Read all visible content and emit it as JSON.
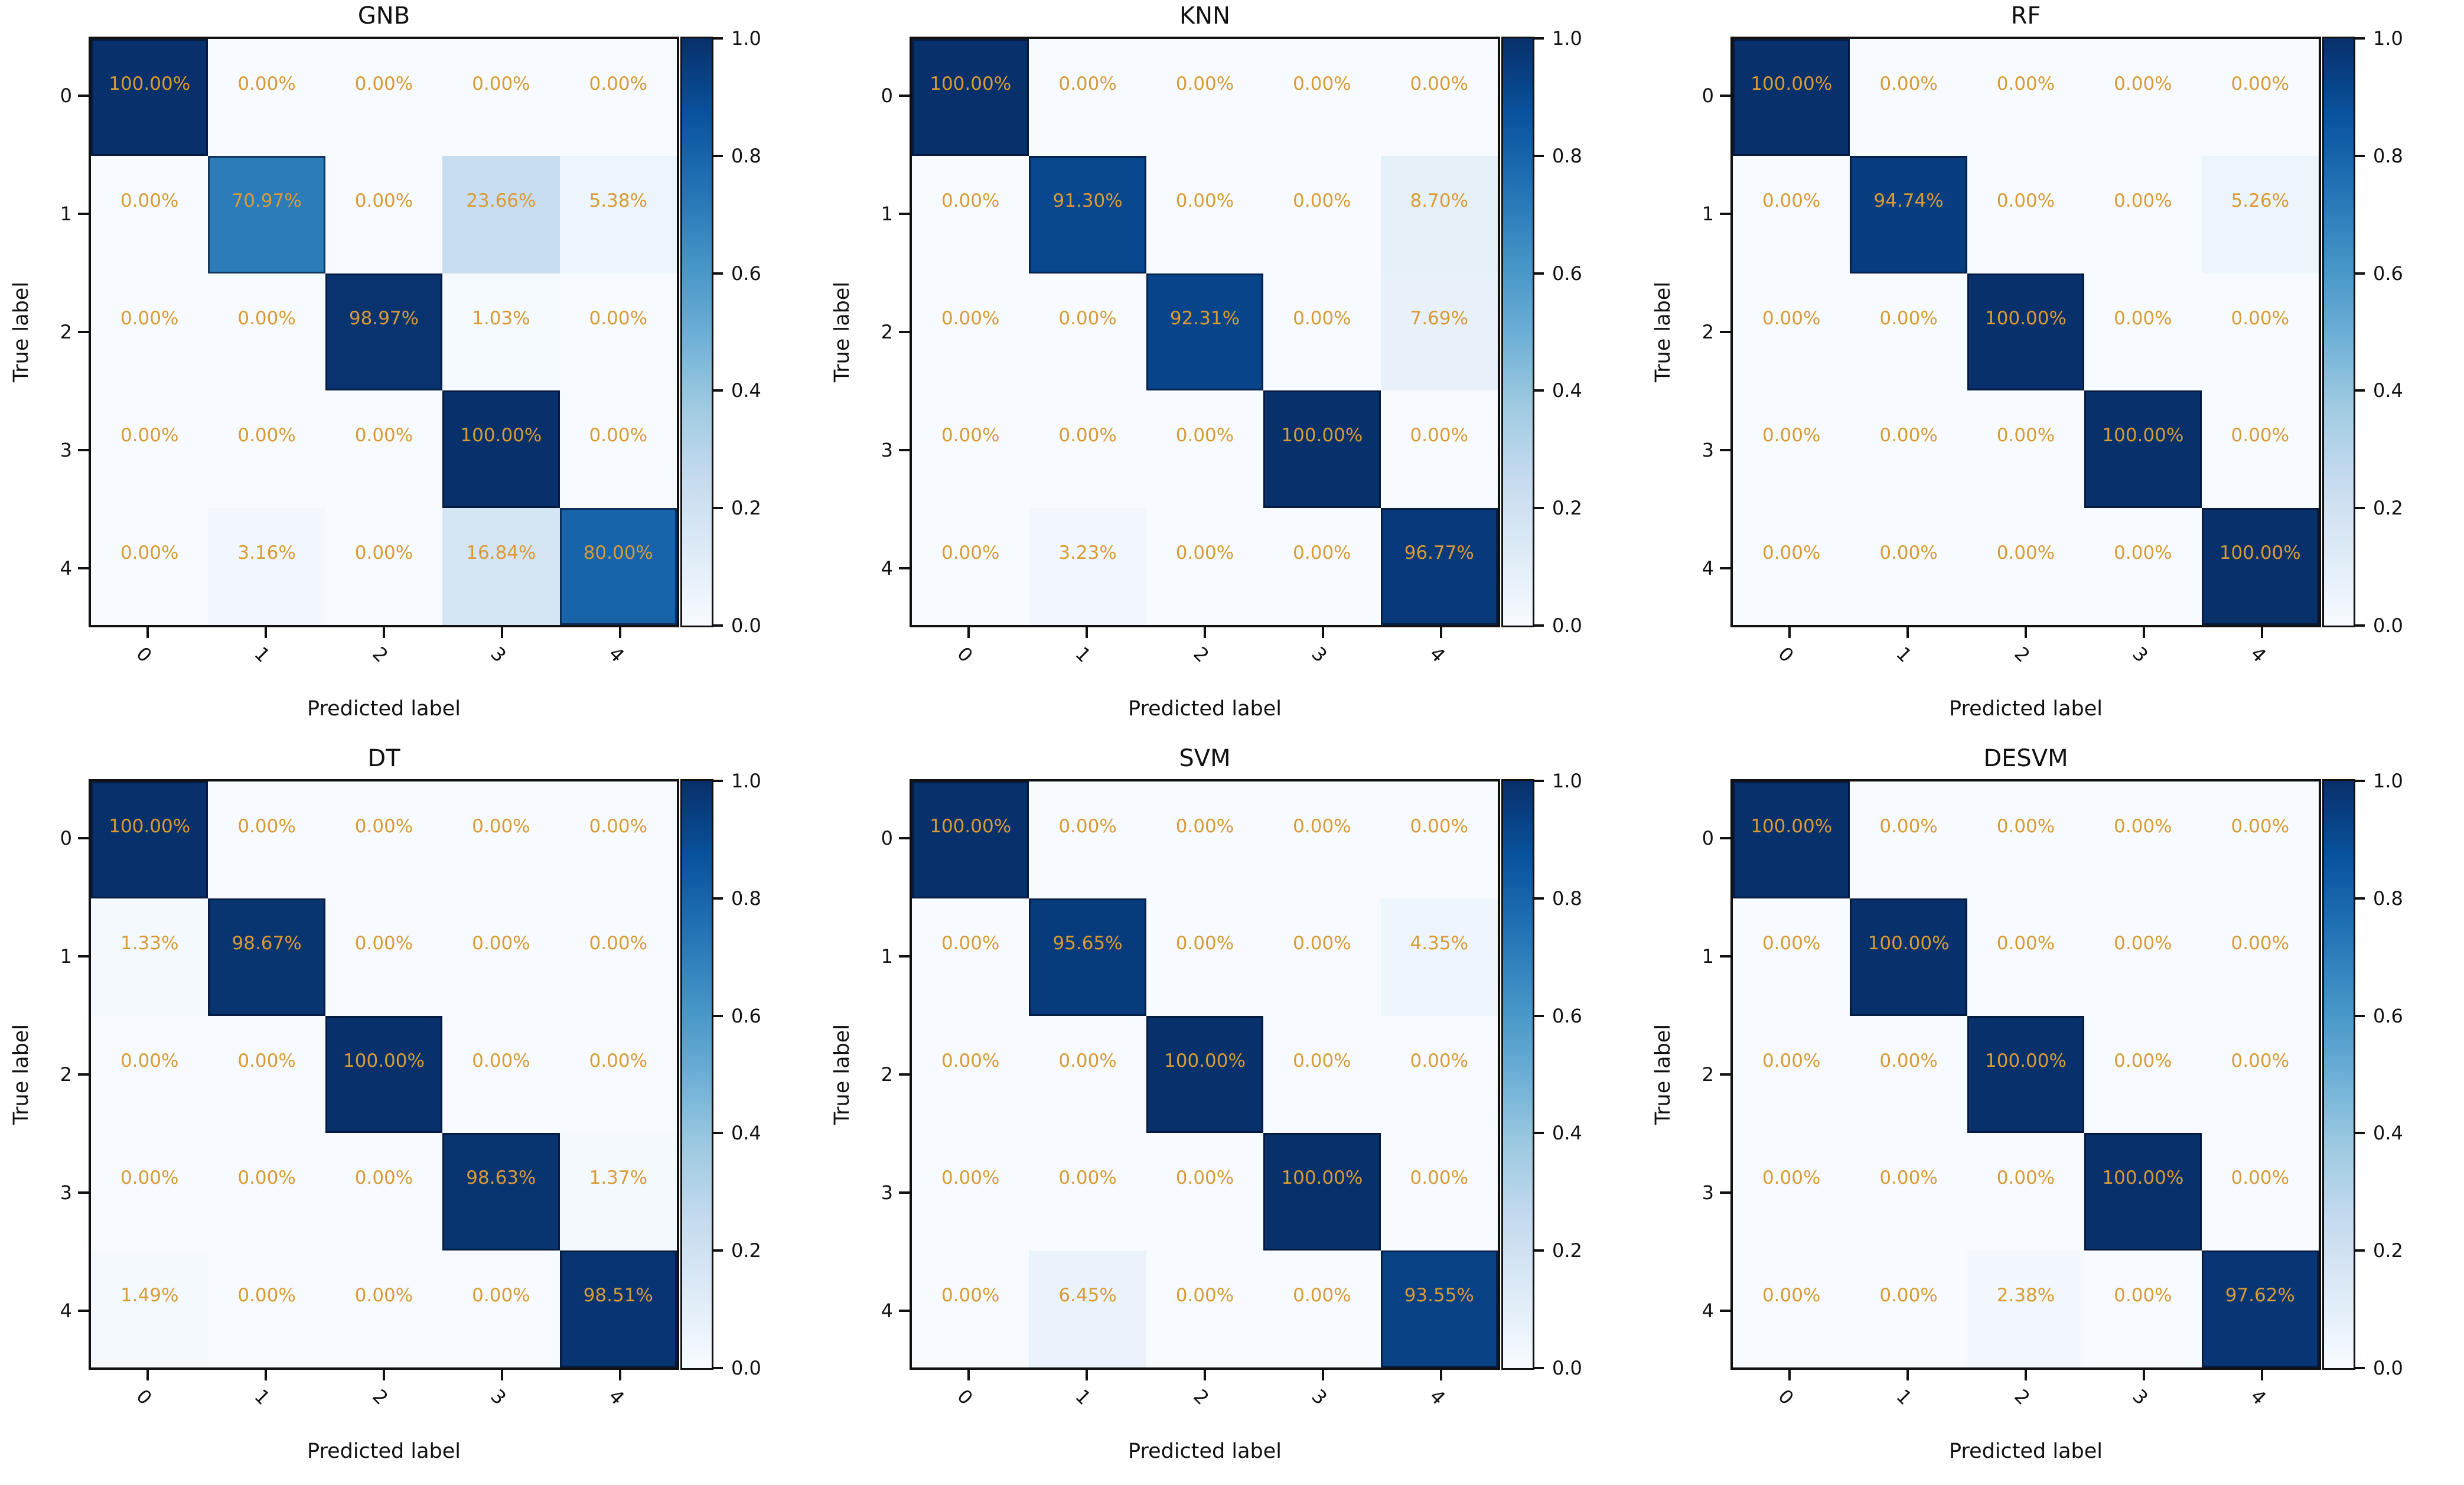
{
  "figure": {
    "background": "#ffffff",
    "annotation_color": "#d89b35",
    "axis_color": "#111111",
    "colormap": "Blues",
    "blues_colormap_anchors": [
      "#f7fbff",
      "#deebf7",
      "#c6dbef",
      "#9ecae1",
      "#6baed6",
      "#4292c6",
      "#2171b5",
      "#08519c",
      "#08306b"
    ]
  },
  "colorbar": {
    "ticks": [
      "1.0",
      "0.8",
      "0.6",
      "0.4",
      "0.2",
      "0.0"
    ],
    "tick_values": [
      1.0,
      0.8,
      0.6,
      0.4,
      0.2,
      0.0
    ],
    "min": 0.0,
    "max": 1.0
  },
  "chart_data": [
    {
      "type": "heatmap",
      "title": "GNB",
      "xlabel": "Predicted label",
      "ylabel": "True label",
      "x_categories": [
        "0",
        "1",
        "2",
        "3",
        "4"
      ],
      "y_categories": [
        "0",
        "1",
        "2",
        "3",
        "4"
      ],
      "values_percent": [
        [
          100.0,
          0.0,
          0.0,
          0.0,
          0.0
        ],
        [
          0.0,
          70.97,
          0.0,
          23.66,
          5.38
        ],
        [
          0.0,
          0.0,
          98.97,
          1.03,
          0.0
        ],
        [
          0.0,
          0.0,
          0.0,
          100.0,
          0.0
        ],
        [
          0.0,
          3.16,
          0.0,
          16.84,
          80.0
        ]
      ],
      "rows": [
        [
          "100.00%",
          "0.00%",
          "0.00%",
          "0.00%",
          "0.00%"
        ],
        [
          "0.00%",
          "70.97%",
          "0.00%",
          "23.66%",
          "5.38%"
        ],
        [
          "0.00%",
          "0.00%",
          "98.97%",
          "1.03%",
          "0.00%"
        ],
        [
          "0.00%",
          "0.00%",
          "0.00%",
          "100.00%",
          "0.00%"
        ],
        [
          "0.00%",
          "3.16%",
          "0.00%",
          "16.84%",
          "80.00%"
        ]
      ]
    },
    {
      "type": "heatmap",
      "title": "KNN",
      "xlabel": "Predicted label",
      "ylabel": "True label",
      "x_categories": [
        "0",
        "1",
        "2",
        "3",
        "4"
      ],
      "y_categories": [
        "0",
        "1",
        "2",
        "3",
        "4"
      ],
      "values_percent": [
        [
          100.0,
          0.0,
          0.0,
          0.0,
          0.0
        ],
        [
          0.0,
          91.3,
          0.0,
          0.0,
          8.7
        ],
        [
          0.0,
          0.0,
          92.31,
          0.0,
          7.69
        ],
        [
          0.0,
          0.0,
          0.0,
          100.0,
          0.0
        ],
        [
          0.0,
          3.23,
          0.0,
          0.0,
          96.77
        ]
      ],
      "rows": [
        [
          "100.00%",
          "0.00%",
          "0.00%",
          "0.00%",
          "0.00%"
        ],
        [
          "0.00%",
          "91.30%",
          "0.00%",
          "0.00%",
          "8.70%"
        ],
        [
          "0.00%",
          "0.00%",
          "92.31%",
          "0.00%",
          "7.69%"
        ],
        [
          "0.00%",
          "0.00%",
          "0.00%",
          "100.00%",
          "0.00%"
        ],
        [
          "0.00%",
          "3.23%",
          "0.00%",
          "0.00%",
          "96.77%"
        ]
      ]
    },
    {
      "type": "heatmap",
      "title": "RF",
      "xlabel": "Predicted label",
      "ylabel": "True label",
      "x_categories": [
        "0",
        "1",
        "2",
        "3",
        "4"
      ],
      "y_categories": [
        "0",
        "1",
        "2",
        "3",
        "4"
      ],
      "values_percent": [
        [
          100.0,
          0.0,
          0.0,
          0.0,
          0.0
        ],
        [
          0.0,
          94.74,
          0.0,
          0.0,
          5.26
        ],
        [
          0.0,
          0.0,
          100.0,
          0.0,
          0.0
        ],
        [
          0.0,
          0.0,
          0.0,
          100.0,
          0.0
        ],
        [
          0.0,
          0.0,
          0.0,
          0.0,
          100.0
        ]
      ],
      "rows": [
        [
          "100.00%",
          "0.00%",
          "0.00%",
          "0.00%",
          "0.00%"
        ],
        [
          "0.00%",
          "94.74%",
          "0.00%",
          "0.00%",
          "5.26%"
        ],
        [
          "0.00%",
          "0.00%",
          "100.00%",
          "0.00%",
          "0.00%"
        ],
        [
          "0.00%",
          "0.00%",
          "0.00%",
          "100.00%",
          "0.00%"
        ],
        [
          "0.00%",
          "0.00%",
          "0.00%",
          "0.00%",
          "100.00%"
        ]
      ]
    },
    {
      "type": "heatmap",
      "title": "DT",
      "xlabel": "Predicted label",
      "ylabel": "True label",
      "x_categories": [
        "0",
        "1",
        "2",
        "3",
        "4"
      ],
      "y_categories": [
        "0",
        "1",
        "2",
        "3",
        "4"
      ],
      "values_percent": [
        [
          100.0,
          0.0,
          0.0,
          0.0,
          0.0
        ],
        [
          1.33,
          98.67,
          0.0,
          0.0,
          0.0
        ],
        [
          0.0,
          0.0,
          100.0,
          0.0,
          0.0
        ],
        [
          0.0,
          0.0,
          0.0,
          98.63,
          1.37
        ],
        [
          1.49,
          0.0,
          0.0,
          0.0,
          98.51
        ]
      ],
      "rows": [
        [
          "100.00%",
          "0.00%",
          "0.00%",
          "0.00%",
          "0.00%"
        ],
        [
          "1.33%",
          "98.67%",
          "0.00%",
          "0.00%",
          "0.00%"
        ],
        [
          "0.00%",
          "0.00%",
          "100.00%",
          "0.00%",
          "0.00%"
        ],
        [
          "0.00%",
          "0.00%",
          "0.00%",
          "98.63%",
          "1.37%"
        ],
        [
          "1.49%",
          "0.00%",
          "0.00%",
          "0.00%",
          "98.51%"
        ]
      ]
    },
    {
      "type": "heatmap",
      "title": "SVM",
      "xlabel": "Predicted label",
      "ylabel": "True label",
      "x_categories": [
        "0",
        "1",
        "2",
        "3",
        "4"
      ],
      "y_categories": [
        "0",
        "1",
        "2",
        "3",
        "4"
      ],
      "values_percent": [
        [
          100.0,
          0.0,
          0.0,
          0.0,
          0.0
        ],
        [
          0.0,
          95.65,
          0.0,
          0.0,
          4.35
        ],
        [
          0.0,
          0.0,
          100.0,
          0.0,
          0.0
        ],
        [
          0.0,
          0.0,
          0.0,
          100.0,
          0.0
        ],
        [
          0.0,
          6.45,
          0.0,
          0.0,
          93.55
        ]
      ],
      "rows": [
        [
          "100.00%",
          "0.00%",
          "0.00%",
          "0.00%",
          "0.00%"
        ],
        [
          "0.00%",
          "95.65%",
          "0.00%",
          "0.00%",
          "4.35%"
        ],
        [
          "0.00%",
          "0.00%",
          "100.00%",
          "0.00%",
          "0.00%"
        ],
        [
          "0.00%",
          "0.00%",
          "0.00%",
          "100.00%",
          "0.00%"
        ],
        [
          "0.00%",
          "6.45%",
          "0.00%",
          "0.00%",
          "93.55%"
        ]
      ]
    },
    {
      "type": "heatmap",
      "title": "DESVM",
      "xlabel": "Predicted label",
      "ylabel": "True label",
      "x_categories": [
        "0",
        "1",
        "2",
        "3",
        "4"
      ],
      "y_categories": [
        "0",
        "1",
        "2",
        "3",
        "4"
      ],
      "values_percent": [
        [
          100.0,
          0.0,
          0.0,
          0.0,
          0.0
        ],
        [
          0.0,
          100.0,
          0.0,
          0.0,
          0.0
        ],
        [
          0.0,
          0.0,
          100.0,
          0.0,
          0.0
        ],
        [
          0.0,
          0.0,
          0.0,
          100.0,
          0.0
        ],
        [
          0.0,
          0.0,
          2.38,
          0.0,
          97.62
        ]
      ],
      "rows": [
        [
          "100.00%",
          "0.00%",
          "0.00%",
          "0.00%",
          "0.00%"
        ],
        [
          "0.00%",
          "100.00%",
          "0.00%",
          "0.00%",
          "0.00%"
        ],
        [
          "0.00%",
          "0.00%",
          "100.00%",
          "0.00%",
          "0.00%"
        ],
        [
          "0.00%",
          "0.00%",
          "0.00%",
          "100.00%",
          "0.00%"
        ],
        [
          "0.00%",
          "0.00%",
          "2.38%",
          "0.00%",
          "97.62%"
        ]
      ]
    }
  ]
}
